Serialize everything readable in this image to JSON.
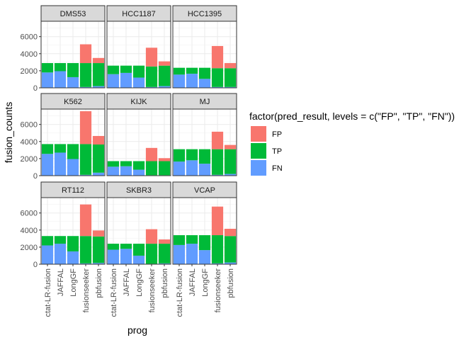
{
  "chart_data": {
    "type": "bar",
    "stacked": true,
    "facet_layout": "wrap 3 columns",
    "xlabel": "prog",
    "ylabel": "fusion_counts",
    "ylim": [
      0,
      7800
    ],
    "yticks": [
      0,
      2000,
      4000,
      6000
    ],
    "grid": true,
    "legend": {
      "title": "factor(pred_result, levels = c(\"FP\", \"TP\", \"FN\"))",
      "placement": "right",
      "items": [
        {
          "name": "FP",
          "color": "#F8766D"
        },
        {
          "name": "TP",
          "color": "#00BA38"
        },
        {
          "name": "FN",
          "color": "#619CFF"
        }
      ]
    },
    "categories": [
      "ctat-LR-fusion",
      "JAFFAL",
      "LongGF",
      "fusionseeker",
      "pbfusion"
    ],
    "stack_order_bottom_to_top": [
      "FN",
      "TP",
      "FP"
    ],
    "facets": [
      {
        "label": "DMS53",
        "FN": [
          1800,
          1950,
          1250,
          100,
          200
        ],
        "TP": [
          1100,
          950,
          1650,
          2800,
          2700
        ],
        "FP": [
          0,
          0,
          0,
          2200,
          600
        ]
      },
      {
        "label": "HCC1187",
        "FN": [
          1600,
          1750,
          1200,
          100,
          200
        ],
        "TP": [
          1000,
          850,
          1400,
          2400,
          2400
        ],
        "FP": [
          0,
          0,
          0,
          2200,
          500
        ]
      },
      {
        "label": "HCC1395",
        "FN": [
          1550,
          1650,
          1050,
          100,
          100
        ],
        "TP": [
          800,
          700,
          1300,
          2200,
          2200
        ],
        "FP": [
          0,
          0,
          0,
          2600,
          600
        ]
      },
      {
        "label": "K562",
        "FN": [
          2550,
          2700,
          1950,
          100,
          350
        ],
        "TP": [
          1150,
          1000,
          1750,
          3600,
          3300
        ],
        "FP": [
          0,
          0,
          0,
          3850,
          1000
        ]
      },
      {
        "label": "KIJK",
        "FN": [
          1050,
          1100,
          700,
          50,
          50
        ],
        "TP": [
          650,
          600,
          1000,
          1650,
          1650
        ],
        "FP": [
          0,
          0,
          0,
          1550,
          350
        ]
      },
      {
        "label": "MJ",
        "FN": [
          1650,
          1800,
          1400,
          100,
          200
        ],
        "TP": [
          1450,
          1300,
          1700,
          3000,
          2900
        ],
        "FP": [
          0,
          0,
          0,
          2050,
          500
        ]
      },
      {
        "label": "RT112",
        "FN": [
          2200,
          2400,
          1500,
          100,
          150
        ],
        "TP": [
          1100,
          900,
          1800,
          3200,
          3100
        ],
        "FP": [
          0,
          0,
          0,
          3700,
          700
        ]
      },
      {
        "label": "SKBR3",
        "FN": [
          1700,
          1800,
          1000,
          50,
          100
        ],
        "TP": [
          700,
          600,
          1400,
          2350,
          2300
        ],
        "FP": [
          0,
          0,
          0,
          1700,
          500
        ]
      },
      {
        "label": "VCAP",
        "FN": [
          2250,
          2400,
          1650,
          100,
          200
        ],
        "TP": [
          1150,
          1000,
          1750,
          3300,
          3100
        ],
        "FP": [
          0,
          0,
          0,
          3350,
          850
        ]
      }
    ]
  }
}
